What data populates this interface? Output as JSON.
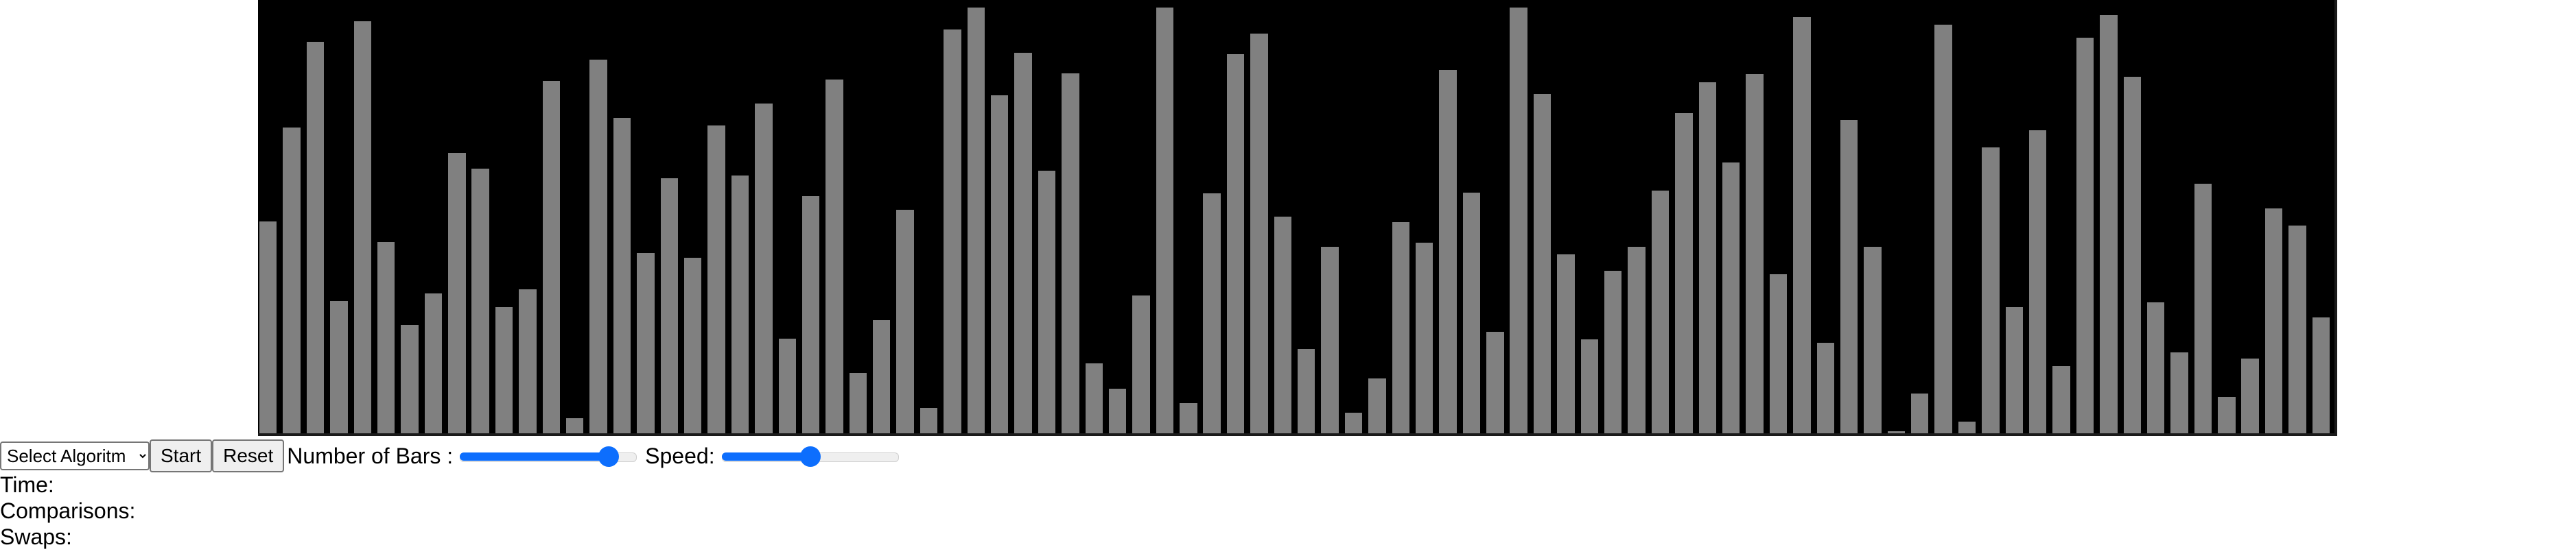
{
  "visualizer": {
    "bar_color": "#808080",
    "background": "#000000",
    "max_value": 640,
    "values": [
      313,
      452,
      578,
      195,
      609,
      283,
      160,
      207,
      414,
      391,
      186,
      213,
      521,
      22,
      552,
      466,
      266,
      377,
      259,
      455,
      381,
      487,
      140,
      350,
      523,
      89,
      167,
      330,
      37,
      596,
      629,
      499,
      562,
      388,
      532,
      103,
      66,
      204,
      629,
      45,
      354,
      560,
      590,
      320,
      125,
      275,
      30,
      81,
      312,
      282,
      537,
      355,
      150,
      629,
      501,
      264,
      139,
      240,
      275,
      358,
      473,
      519,
      400,
      531,
      235,
      615,
      134,
      463,
      275,
      3,
      59,
      604,
      17,
      422,
      186,
      448,
      99,
      584,
      618,
      527,
      193,
      120,
      369,
      54,
      110,
      332,
      307,
      171
    ],
    "bar_width_ratio": 0.74
  },
  "controls": {
    "algorithm_select_value": "Select Algoritm",
    "start_label": "Start",
    "reset_label": "Reset",
    "num_bars_label": "Number of Bars :",
    "num_bars_fraction": 0.84,
    "speed_label": "Speed:",
    "speed_fraction": 0.5
  },
  "stats": {
    "time_label": "Time:",
    "comparisons_label": "Comparisons:",
    "swaps_label": "Swaps:"
  }
}
